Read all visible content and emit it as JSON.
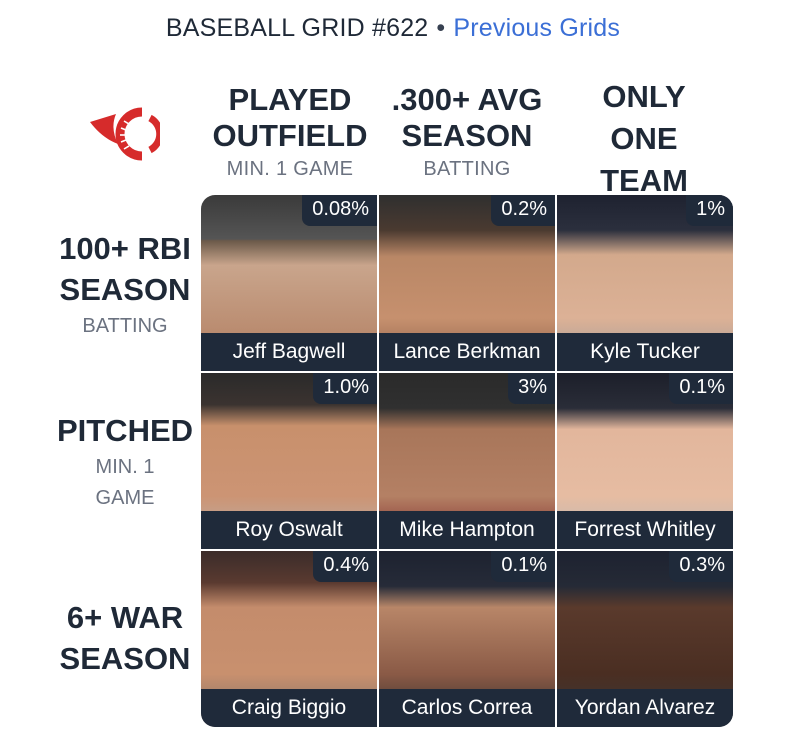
{
  "header": {
    "title": "BASEBALL GRID #622",
    "separator": "•",
    "previous_link": "Previous Grids"
  },
  "columns": [
    {
      "lines": [
        "PLAYED",
        "OUTFIELD"
      ],
      "sub": "MIN. 1 GAME"
    },
    {
      "lines": [
        ".300+ AVG",
        "SEASON"
      ],
      "sub": "BATTING"
    },
    {
      "lines": [
        "ONLY",
        "ONE",
        "TEAM"
      ],
      "sub": ""
    }
  ],
  "rows": [
    {
      "lines": [
        "100+ RBI",
        "SEASON"
      ],
      "sub": [
        "BATTING"
      ]
    },
    {
      "lines": [
        "PITCHED"
      ],
      "sub": [
        "MIN. 1",
        "GAME"
      ]
    },
    {
      "lines": [
        "6+ WAR",
        "SEASON"
      ],
      "sub": []
    }
  ],
  "cells": [
    [
      {
        "name": "Jeff Bagwell",
        "pct": "0.08%"
      },
      {
        "name": "Lance Berkman",
        "pct": "0.2%"
      },
      {
        "name": "Kyle Tucker",
        "pct": "1%"
      }
    ],
    [
      {
        "name": "Roy Oswalt",
        "pct": "1.0%"
      },
      {
        "name": "Mike Hampton",
        "pct": "3%"
      },
      {
        "name": "Forrest Whitley",
        "pct": "0.1%"
      }
    ],
    [
      {
        "name": "Craig Biggio",
        "pct": "0.4%"
      },
      {
        "name": "Carlos Correa",
        "pct": "0.1%"
      },
      {
        "name": "Yordan Alvarez",
        "pct": "0.3%"
      }
    ]
  ],
  "colors": {
    "link": "#3b6fd6",
    "label_bar": "#1f2a3a",
    "logo_red": "#d62b2b"
  }
}
